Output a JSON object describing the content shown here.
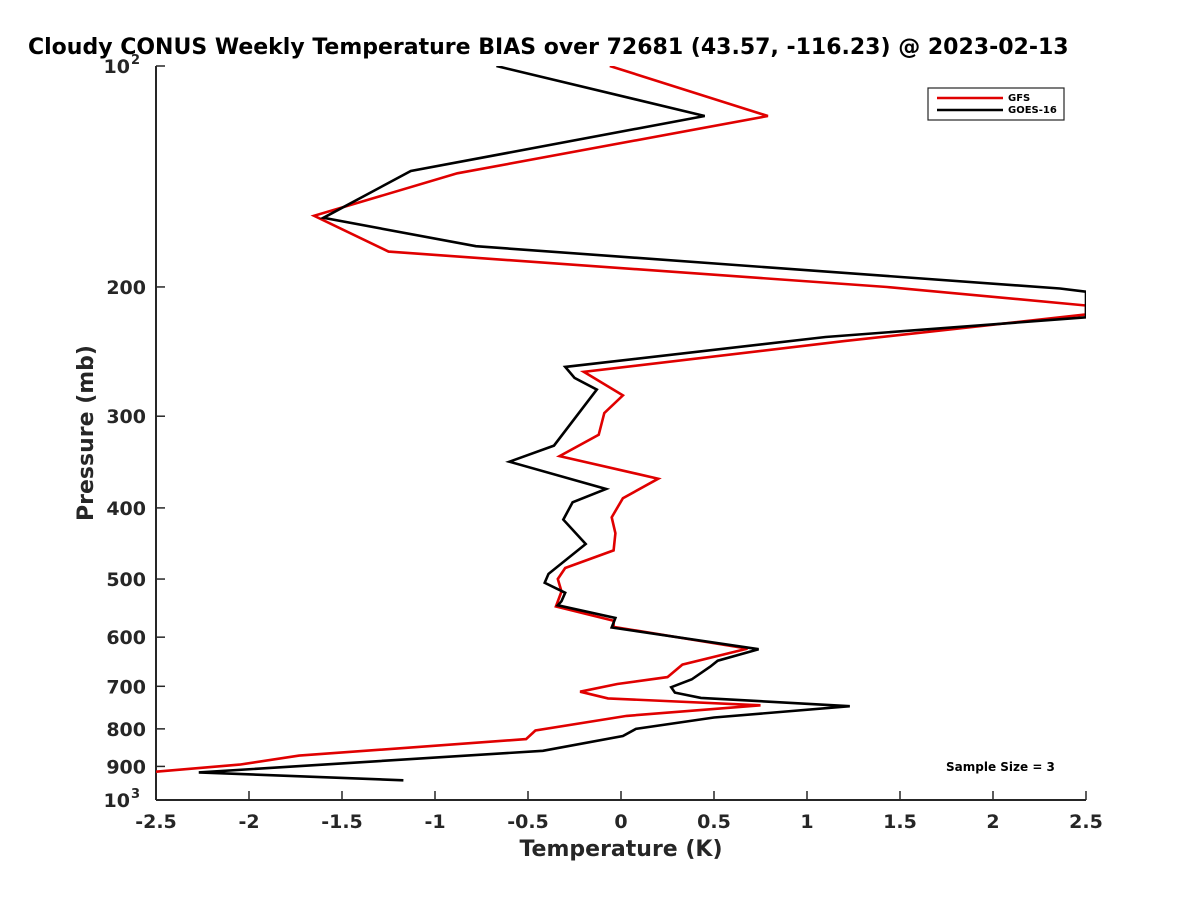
{
  "chart_data": {
    "type": "line",
    "title": "Cloudy CONUS Weekly Temperature BIAS over 72681 (43.57, -116.23) @ 2023-02-13",
    "xlabel": "Temperature (K)",
    "ylabel": "Pressure (mb)",
    "xlim": [
      -2.5,
      2.5
    ],
    "ylim": [
      100,
      1000
    ],
    "y_scale": "log",
    "y_reversed": true,
    "grid": false,
    "legend_position": "top-right",
    "xticks": [
      -2.5,
      -2,
      -1.5,
      -1,
      -0.5,
      0,
      0.5,
      1,
      1.5,
      2,
      2.5
    ],
    "xtick_labels": [
      "-2.5",
      "-2",
      "-1.5",
      "-1",
      "-0.5",
      "0",
      "0.5",
      "1",
      "1.5",
      "2",
      "2.5"
    ],
    "yticks": [
      {
        "value": 100,
        "base": "10",
        "exp": "2"
      },
      {
        "value": 200,
        "label": "200"
      },
      {
        "value": 300,
        "label": "300"
      },
      {
        "value": 400,
        "label": "400"
      },
      {
        "value": 500,
        "label": "500"
      },
      {
        "value": 600,
        "label": "600"
      },
      {
        "value": 700,
        "label": "700"
      },
      {
        "value": 800,
        "label": "800"
      },
      {
        "value": 900,
        "label": "900"
      },
      {
        "value": 1000,
        "base": "10",
        "exp": "3"
      }
    ],
    "annotation": "Sample Size = 3",
    "series": [
      {
        "name": "GFS",
        "color": "#e00000",
        "points": [
          [
            -0.06,
            100
          ],
          [
            0.79,
            117
          ],
          [
            -0.88,
            140
          ],
          [
            -1.65,
            160
          ],
          [
            -1.25,
            179
          ],
          [
            1.43,
            200
          ],
          [
            2.5,
            212
          ],
          [
            2.5,
            218
          ],
          [
            1.2,
            237
          ],
          [
            -0.2,
            261
          ],
          [
            0.01,
            281
          ],
          [
            -0.09,
            297
          ],
          [
            -0.12,
            318
          ],
          [
            -0.33,
            340
          ],
          [
            0.2,
            365
          ],
          [
            0.01,
            388
          ],
          [
            -0.05,
            412
          ],
          [
            -0.03,
            433
          ],
          [
            -0.04,
            457
          ],
          [
            -0.3,
            483
          ],
          [
            -0.34,
            500
          ],
          [
            -0.32,
            520
          ],
          [
            -0.35,
            545
          ],
          [
            -0.04,
            570
          ],
          [
            -0.04,
            581
          ],
          [
            0.68,
            622
          ],
          [
            0.33,
            654
          ],
          [
            0.25,
            680
          ],
          [
            -0.02,
            695
          ],
          [
            -0.22,
            712
          ],
          [
            -0.07,
            727
          ],
          [
            0.75,
            743
          ],
          [
            0.03,
            768
          ],
          [
            -0.46,
            804
          ],
          [
            -0.51,
            826
          ],
          [
            -1.73,
            870
          ],
          [
            -2.05,
            895
          ],
          [
            -2.5,
            915
          ]
        ]
      },
      {
        "name": "GOES-16",
        "color": "#000000",
        "points": [
          [
            -0.67,
            100
          ],
          [
            0.45,
            117
          ],
          [
            -1.13,
            139
          ],
          [
            -1.6,
            161
          ],
          [
            -0.78,
            176
          ],
          [
            2.36,
            201
          ],
          [
            2.5,
            203
          ],
          [
            2.5,
            220
          ],
          [
            1.1,
            234
          ],
          [
            -0.3,
            257
          ],
          [
            -0.25,
            266
          ],
          [
            -0.13,
            276
          ],
          [
            -0.36,
            329
          ],
          [
            -0.6,
            346
          ],
          [
            -0.08,
            377
          ],
          [
            -0.26,
            393
          ],
          [
            -0.31,
            415
          ],
          [
            -0.19,
            448
          ],
          [
            -0.39,
            492
          ],
          [
            -0.41,
            506
          ],
          [
            -0.3,
            522
          ],
          [
            -0.32,
            536
          ],
          [
            -0.34,
            543
          ],
          [
            -0.03,
            565
          ],
          [
            -0.05,
            582
          ],
          [
            0.74,
            623
          ],
          [
            0.52,
            646
          ],
          [
            0.48,
            658
          ],
          [
            0.38,
            685
          ],
          [
            0.27,
            702
          ],
          [
            0.29,
            714
          ],
          [
            0.43,
            726
          ],
          [
            1.23,
            745
          ],
          [
            0.5,
            772
          ],
          [
            0.08,
            800
          ],
          [
            0.01,
            818
          ],
          [
            -0.42,
            857
          ],
          [
            -2.27,
            917
          ],
          [
            -1.17,
            940
          ]
        ]
      }
    ]
  }
}
